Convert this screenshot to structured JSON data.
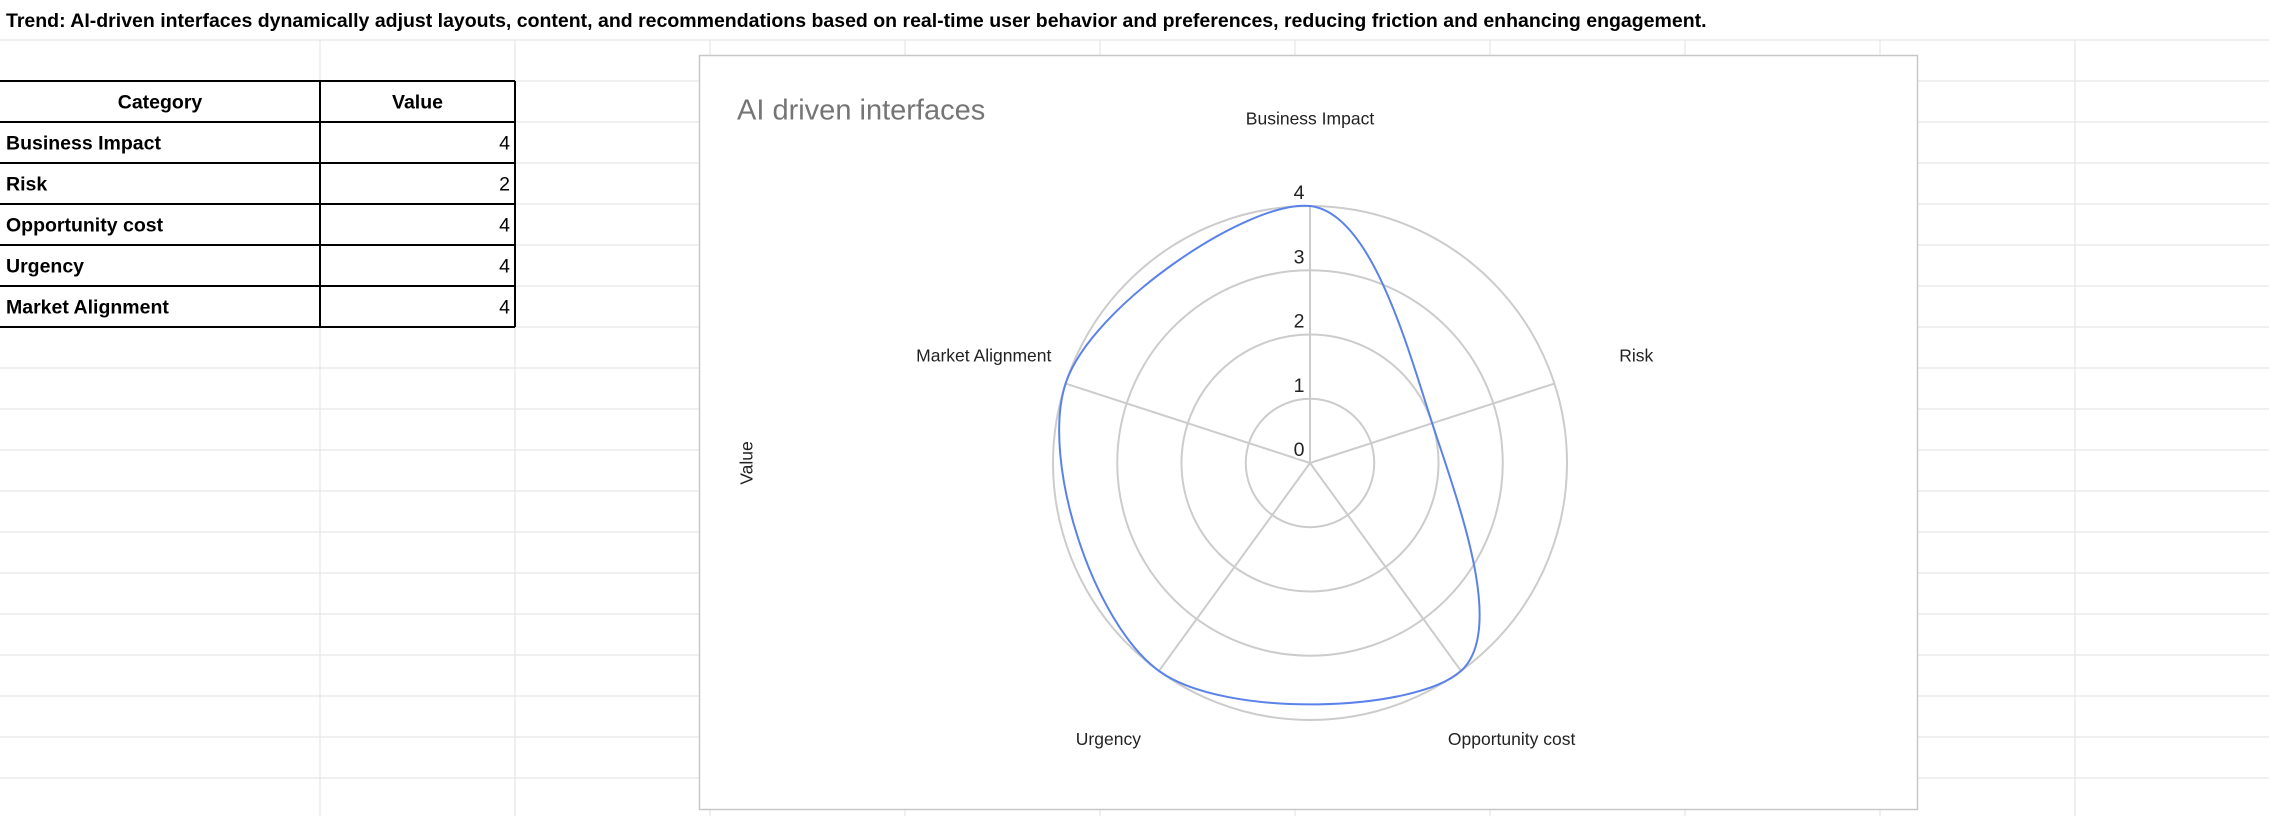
{
  "header": {
    "trend": "Trend: AI-driven interfaces dynamically adjust layouts, content, and recommendations based on real-time user behavior and preferences, reducing friction and enhancing engagement."
  },
  "table": {
    "columns": [
      "Category",
      "Value"
    ],
    "rows": [
      [
        "Business Impact",
        "4"
      ],
      [
        "Risk",
        "2"
      ],
      [
        "Opportunity cost",
        "4"
      ],
      [
        "Urgency",
        "4"
      ],
      [
        "Market Alignment",
        "4"
      ]
    ]
  },
  "chart_data": {
    "type": "radar",
    "title": "AI driven interfaces",
    "y_label": "Value",
    "categories": [
      "Business Impact",
      "Risk",
      "Opportunity cost",
      "Urgency",
      "Market Alignment"
    ],
    "series": [
      {
        "color": "#5b82e8",
        "values": [
          4,
          2,
          4,
          4,
          4
        ]
      }
    ],
    "ylim": [
      0,
      4
    ],
    "yticks": [
      0,
      1,
      2,
      3,
      4
    ],
    "grid": true
  }
}
